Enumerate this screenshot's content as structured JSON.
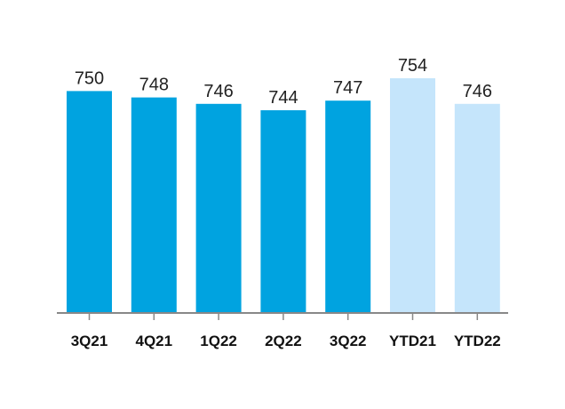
{
  "chart_data": {
    "type": "bar",
    "categories": [
      "3Q21",
      "4Q21",
      "1Q22",
      "2Q22",
      "3Q22",
      "YTD21",
      "YTD22"
    ],
    "values": [
      750,
      748,
      746,
      744,
      747,
      754,
      746
    ],
    "title": "",
    "xlabel": "",
    "ylabel": "",
    "grid": false,
    "legend": "none",
    "colors": {
      "quarter": "#00A3E0",
      "ytd": "#C5E5FB",
      "axis": "#888888"
    },
    "bar_colors": [
      "quarter",
      "quarter",
      "quarter",
      "quarter",
      "quarter",
      "ytd",
      "ytd"
    ]
  }
}
